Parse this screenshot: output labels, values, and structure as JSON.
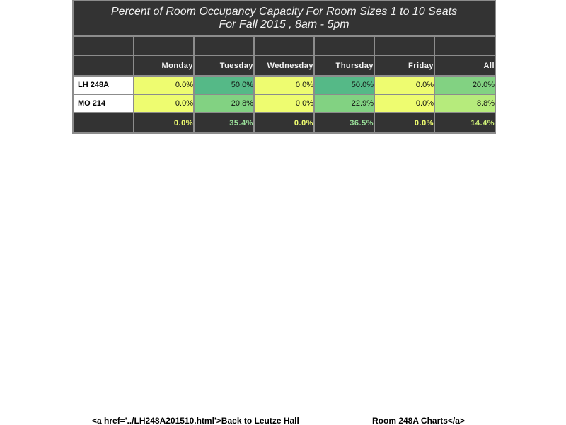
{
  "table": {
    "title_line1": "Percent of Room Occupancy Capacity For Room Sizes 1 to 10 Seats",
    "title_line2": "For Fall 2015  , 8am - 5pm",
    "headers": [
      "",
      "Monday",
      "Tuesday",
      "Wednesday",
      "Thursday",
      "Friday",
      "All"
    ],
    "rows": [
      {
        "room": "LH 248A",
        "values": [
          "0.0%",
          "50.0%",
          "0.0%",
          "50.0%",
          "0.0%",
          "20.0%"
        ],
        "colors": [
          "#eefc70",
          "#55b987",
          "#eefc70",
          "#55b987",
          "#eefc70",
          "#82d282"
        ]
      },
      {
        "room": "MO 214",
        "values": [
          "0.0%",
          "20.8%",
          "0.0%",
          "22.9%",
          "0.0%",
          "8.8%"
        ],
        "colors": [
          "#eefc70",
          "#82d282",
          "#eefc70",
          "#82d282",
          "#eefc70",
          "#b6eb7c"
        ]
      }
    ],
    "totals": {
      "values": [
        "0.0%",
        "35.4%",
        "0.0%",
        "36.5%",
        "0.0%",
        "14.4%"
      ],
      "colors": [
        "#eefc70",
        "#9ae09a",
        "#eefc70",
        "#9ae09a",
        "#eefc70",
        "#d2f47a"
      ]
    }
  },
  "footer": {
    "left_text": "<a href='../LH248A201510.html'>Back to Leutze Hall",
    "right_text": "Room 248A Charts</a>"
  }
}
